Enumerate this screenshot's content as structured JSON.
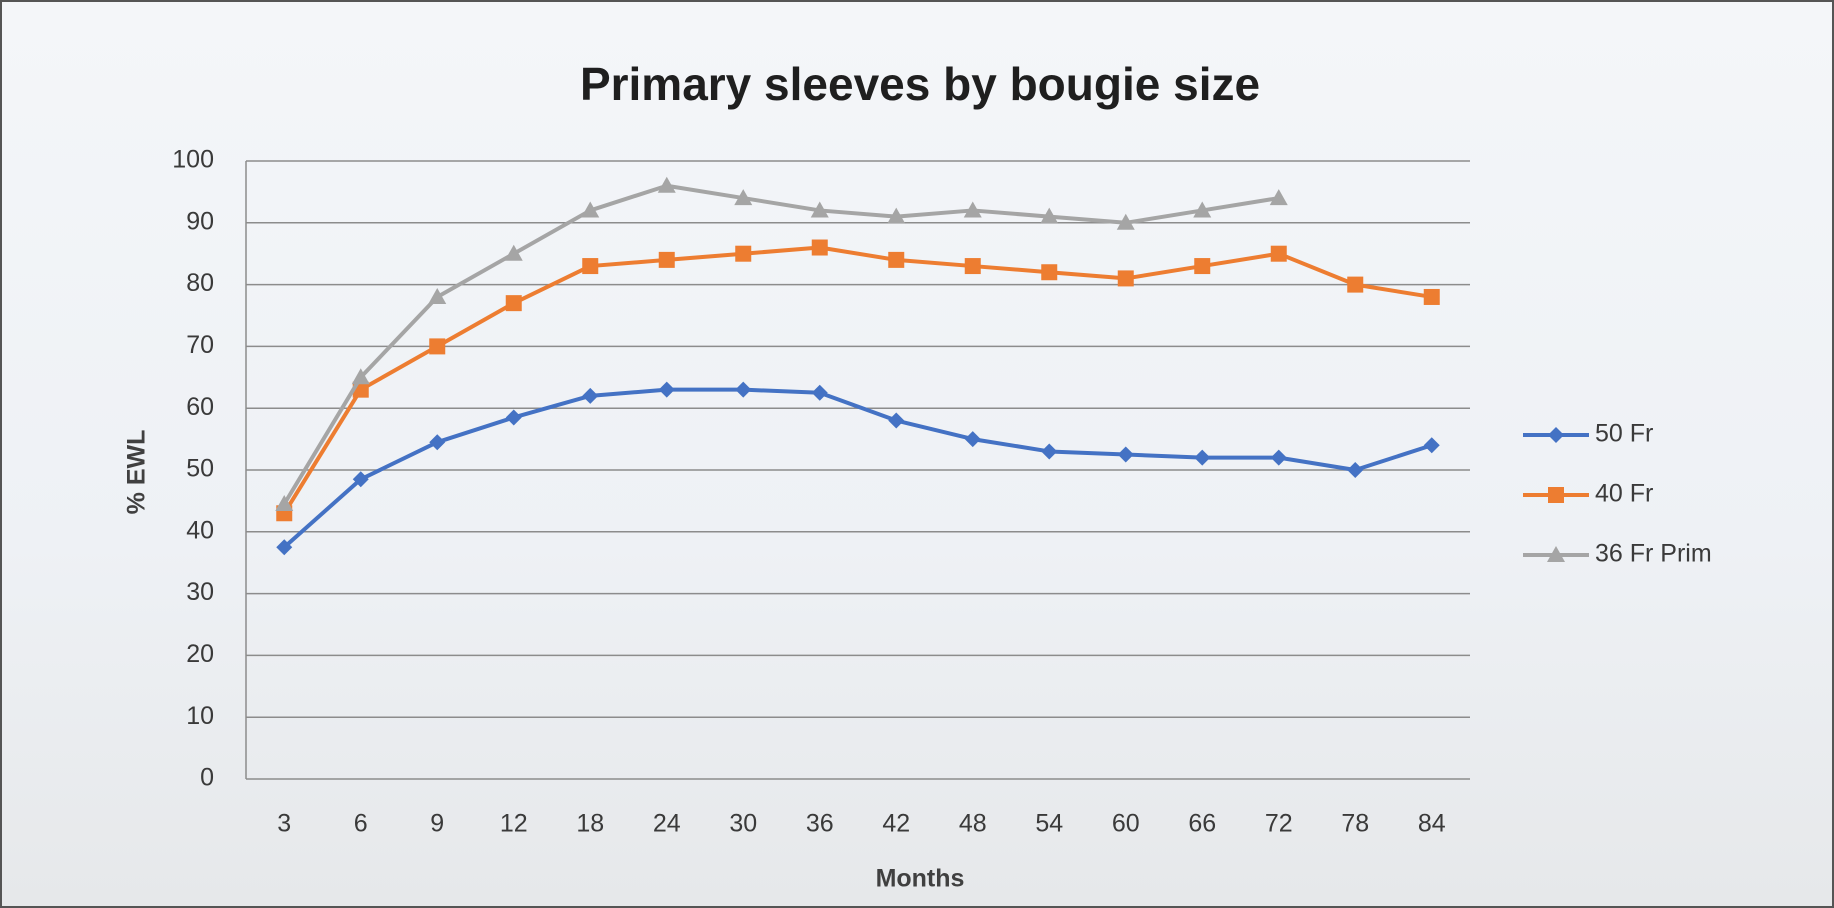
{
  "chart_data": {
    "type": "line",
    "title": "Primary sleeves by bougie size",
    "x_label": "Months",
    "y_label": "% EWL",
    "categories": [
      "3",
      "6",
      "9",
      "12",
      "18",
      "24",
      "30",
      "36",
      "42",
      "48",
      "54",
      "60",
      "66",
      "72",
      "78",
      "84"
    ],
    "series": [
      {
        "name": "50 Fr",
        "color": "#4472c4",
        "marker": "diamond",
        "values": [
          37.5,
          48.5,
          54.5,
          58.5,
          62,
          63,
          63,
          62.5,
          58,
          55,
          53,
          52.5,
          52,
          52,
          50,
          54
        ]
      },
      {
        "name": "40 Fr",
        "color": "#ed7d31",
        "marker": "square",
        "values": [
          43,
          63,
          70,
          77,
          83,
          84,
          85,
          86,
          84,
          83,
          82,
          81,
          83,
          85,
          80,
          78
        ]
      },
      {
        "name": "36 Fr Prim",
        "color": "#a5a5a5",
        "marker": "triangle",
        "values": [
          44.5,
          65,
          78,
          85,
          92,
          96,
          94,
          92,
          91,
          92,
          91,
          90,
          92,
          94,
          null,
          null
        ]
      }
    ],
    "ylim": [
      0,
      100
    ],
    "yticks": [
      0,
      10,
      20,
      30,
      40,
      50,
      60,
      70,
      80,
      90,
      100
    ],
    "grid": true,
    "legend": "right"
  }
}
